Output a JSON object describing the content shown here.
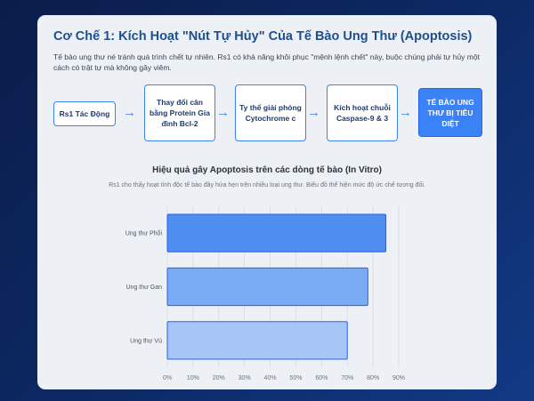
{
  "header": {
    "title": "Cơ Chế 1: Kích Hoạt \"Nút Tự Hủy\" Của Tế Bào Ung Thư (Apoptosis)",
    "intro": "Tế bào ung thư né tránh quá trình chết tự nhiên. Rs1 có khả năng khôi phục \"mệnh lệnh chết\" này, buộc chúng phải tự hủy một cách có trật tự mà không gây viêm."
  },
  "flow": {
    "steps": [
      {
        "label": "Rs1 Tác Động",
        "final": false
      },
      {
        "label": "Thay đổi cân bằng Protein Gia đình Bcl-2",
        "final": false
      },
      {
        "label": "Ty thể giải phóng Cytochrome c",
        "final": false
      },
      {
        "label": "Kích hoạt chuỗi Caspase-9 & 3",
        "final": false
      },
      {
        "label": "TẾ BÀO UNG THƯ BỊ TIÊU DIỆT",
        "final": true
      }
    ],
    "arrow_glyph": "→"
  },
  "chart_data": {
    "type": "bar",
    "orientation": "horizontal",
    "title": "Hiệu quả gây Apoptosis trên các dòng tế bào (In Vitro)",
    "subtitle": "Rs1 cho thấy hoạt tính độc tế bào đầy hứa hẹn trên nhiều loại ung thư. Biểu đồ thể hiện mức độ ức chế tương đối.",
    "categories": [
      "Ung thư Phổi",
      "Ung thư Gan",
      "Ung thư Vú"
    ],
    "values": [
      85,
      78,
      70
    ],
    "bar_colors": [
      "#4f8ef0",
      "#7aacf5",
      "#a7c6f8"
    ],
    "bar_border": "#2563eb",
    "xlim": [
      0,
      90
    ],
    "xticks": [
      0,
      10,
      20,
      30,
      40,
      50,
      60,
      70,
      80,
      90
    ],
    "tick_suffix": "%",
    "grid": true
  },
  "colors": {
    "accent": "#3b82f6",
    "title": "#1e4f8e",
    "card": "#edf0f5"
  }
}
